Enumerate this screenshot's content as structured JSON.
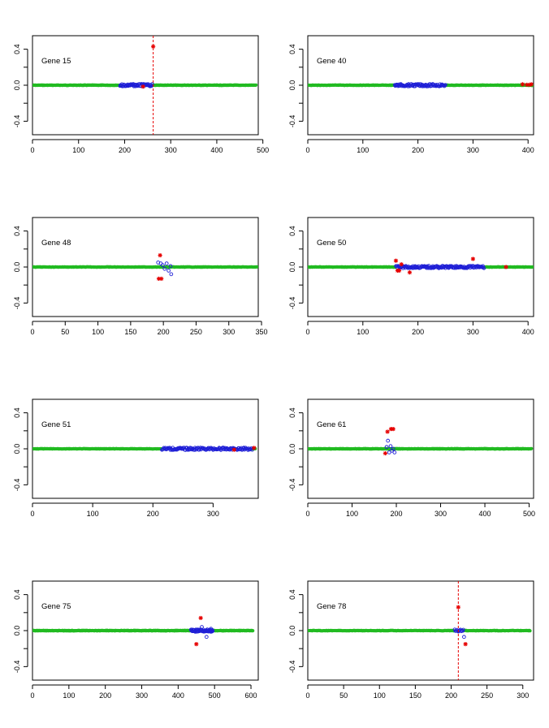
{
  "chart_data": [
    {
      "type": "scatter",
      "label": "Gene 15",
      "xlim": [
        0,
        490
      ],
      "ylim": [
        -0.55,
        0.55
      ],
      "xticks": [
        0,
        100,
        200,
        300,
        400,
        500
      ],
      "yticks": [
        -0.4,
        0.0,
        0.4
      ],
      "green_range": [
        0,
        485
      ],
      "blue_range": [
        190,
        260
      ],
      "blue_points": [],
      "red_points": [
        [
          240,
          -0.015
        ],
        [
          262,
          0.43
        ]
      ],
      "vline": 262,
      "colors": {
        "green": "#22bb22",
        "blue": "#1f1fd6",
        "red": "#e60000"
      }
    },
    {
      "type": "scatter",
      "label": "Gene 40",
      "xlim": [
        0,
        410
      ],
      "ylim": [
        -0.55,
        0.55
      ],
      "xticks": [
        0,
        100,
        200,
        300,
        400
      ],
      "yticks": [
        -0.4,
        0.0,
        0.4
      ],
      "green_range": [
        0,
        408
      ],
      "blue_range": [
        158,
        250
      ],
      "blue_points": [],
      "red_points": [
        [
          390,
          0.01
        ],
        [
          398,
          0.005
        ],
        [
          403,
          0.005
        ],
        [
          406,
          0.01
        ]
      ],
      "vline": null,
      "colors": {
        "green": "#22bb22",
        "blue": "#1f1fd6",
        "red": "#e60000"
      }
    },
    {
      "type": "scatter",
      "label": "Gene 48",
      "xlim": [
        0,
        345
      ],
      "ylim": [
        -0.55,
        0.55
      ],
      "xticks": [
        0,
        50,
        100,
        150,
        200,
        250,
        300,
        350
      ],
      "yticks": [
        -0.4,
        0.0,
        0.4
      ],
      "green_range": [
        0,
        343
      ],
      "blue_range": null,
      "blue_points": [
        [
          192,
          0.05
        ],
        [
          196,
          0.04
        ],
        [
          199,
          0.02
        ],
        [
          202,
          -0.02
        ],
        [
          205,
          0.04
        ],
        [
          208,
          -0.04
        ],
        [
          211,
          0.01
        ],
        [
          212,
          -0.08
        ]
      ],
      "red_points": [
        [
          193,
          -0.13
        ],
        [
          195,
          0.13
        ],
        [
          197,
          -0.13
        ]
      ],
      "vline": null,
      "colors": {
        "green": "#22bb22",
        "blue": "#1f1fd6",
        "red": "#e60000"
      }
    },
    {
      "type": "scatter",
      "label": "Gene 50",
      "xlim": [
        0,
        410
      ],
      "ylim": [
        -0.55,
        0.55
      ],
      "xticks": [
        0,
        100,
        200,
        300,
        400
      ],
      "yticks": [
        -0.4,
        0.0,
        0.4
      ],
      "green_range": [
        0,
        408
      ],
      "blue_range": [
        160,
        320
      ],
      "blue_points": [],
      "red_points": [
        [
          160,
          0.07
        ],
        [
          163,
          -0.04
        ],
        [
          166,
          -0.04
        ],
        [
          170,
          0.03
        ],
        [
          185,
          -0.06
        ],
        [
          300,
          0.09
        ],
        [
          360,
          0.0
        ]
      ],
      "vline": null,
      "colors": {
        "green": "#22bb22",
        "blue": "#1f1fd6",
        "red": "#e60000"
      }
    },
    {
      "type": "scatter",
      "label": "Gene 51",
      "xlim": [
        0,
        375
      ],
      "ylim": [
        -0.55,
        0.55
      ],
      "xticks": [
        0,
        100,
        200,
        300
      ],
      "yticks": [
        -0.4,
        0.0,
        0.4
      ],
      "green_range": [
        0,
        370
      ],
      "blue_range": [
        215,
        365
      ],
      "blue_points": [],
      "red_points": [
        [
          335,
          -0.01
        ],
        [
          368,
          0.01
        ]
      ],
      "vline": null,
      "colors": {
        "green": "#22bb22",
        "blue": "#1f1fd6",
        "red": "#e60000"
      }
    },
    {
      "type": "scatter",
      "label": "Gene 61",
      "xlim": [
        0,
        510
      ],
      "ylim": [
        -0.55,
        0.55
      ],
      "xticks": [
        0,
        100,
        200,
        300,
        400,
        500
      ],
      "yticks": [
        -0.4,
        0.0,
        0.4
      ],
      "green_range": [
        0,
        505
      ],
      "blue_range": null,
      "blue_points": [
        [
          178,
          0.02
        ],
        [
          181,
          0.09
        ],
        [
          184,
          -0.04
        ],
        [
          187,
          0.03
        ],
        [
          190,
          -0.02
        ],
        [
          193,
          0.0
        ],
        [
          196,
          -0.04
        ]
      ],
      "red_points": [
        [
          175,
          -0.05
        ],
        [
          180,
          0.19
        ],
        [
          188,
          0.22
        ],
        [
          193,
          0.22
        ]
      ],
      "vline": null,
      "colors": {
        "green": "#22bb22",
        "blue": "#1f1fd6",
        "red": "#e60000"
      }
    },
    {
      "type": "scatter",
      "label": "Gene 75",
      "xlim": [
        0,
        620
      ],
      "ylim": [
        -0.55,
        0.55
      ],
      "xticks": [
        0,
        100,
        200,
        300,
        400,
        500,
        600
      ],
      "yticks": [
        -0.4,
        0.0,
        0.4
      ],
      "green_range": [
        0,
        605
      ],
      "blue_range": [
        435,
        495
      ],
      "blue_points": [
        [
          465,
          0.04
        ],
        [
          478,
          -0.07
        ],
        [
          490,
          0.02
        ]
      ],
      "red_points": [
        [
          450,
          -0.15
        ],
        [
          462,
          0.14
        ]
      ],
      "vline": null,
      "colors": {
        "green": "#22bb22",
        "blue": "#1f1fd6",
        "red": "#e60000"
      }
    },
    {
      "type": "scatter",
      "label": "Gene 78",
      "xlim": [
        0,
        315
      ],
      "ylim": [
        -0.55,
        0.55
      ],
      "xticks": [
        0,
        50,
        100,
        150,
        200,
        250,
        300
      ],
      "yticks": [
        -0.4,
        0.0,
        0.4
      ],
      "green_range": [
        0,
        310
      ],
      "blue_range": [
        205,
        217
      ],
      "blue_points": [
        [
          218,
          -0.07
        ]
      ],
      "red_points": [
        [
          210,
          0.26
        ],
        [
          220,
          -0.15
        ]
      ],
      "vline": 210,
      "colors": {
        "green": "#22bb22",
        "blue": "#1f1fd6",
        "red": "#e60000"
      }
    }
  ]
}
